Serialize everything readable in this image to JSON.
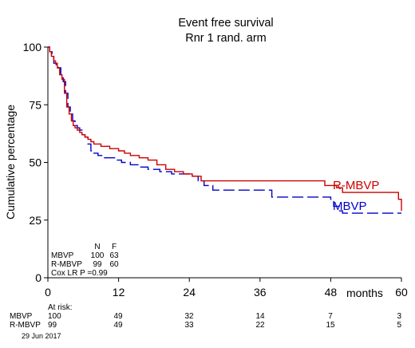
{
  "chart_data": {
    "type": "line",
    "step": true,
    "title": "Event free survival",
    "subtitle": "Rnr 1 rand. arm",
    "ylabel": "Cumulative percentage",
    "xlabel_unit": "months",
    "xlim": [
      0,
      60
    ],
    "ylim": [
      0,
      100
    ],
    "xticks": [
      "0",
      "12",
      "24",
      "36",
      "48",
      "60"
    ],
    "yticks": [
      "0",
      "25",
      "50",
      "75",
      "100"
    ],
    "grid": false,
    "series": [
      {
        "name": "R-MBVP",
        "color": "#cc0000",
        "dash": "solid",
        "x": [
          0,
          0.3,
          0.6,
          1.0,
          1.3,
          1.6,
          2.0,
          2.4,
          2.8,
          3.2,
          3.6,
          4.0,
          4.3,
          4.6,
          5.0,
          5.4,
          5.8,
          6.3,
          6.8,
          7.3,
          7.8,
          8.3,
          9.0,
          9.8,
          10.5,
          11.2,
          12.0,
          13.0,
          14.0,
          15.5,
          17.0,
          18.5,
          20.0,
          21.5,
          23.0,
          24.5,
          26.0,
          46.0,
          47.0,
          49.0,
          50.0,
          57.0,
          59.5,
          60
        ],
        "y": [
          100,
          98,
          96,
          94,
          93,
          91,
          88,
          86,
          80,
          74,
          71,
          68,
          66,
          65,
          64,
          63,
          62,
          61,
          60,
          59,
          58,
          58,
          57,
          57,
          56,
          56,
          55,
          54,
          53,
          52,
          51,
          49,
          47,
          46,
          45,
          44,
          42,
          42,
          40,
          39,
          37,
          37,
          34,
          29
        ]
      },
      {
        "name": "MBVP",
        "color": "#0000cc",
        "dash": "dashed",
        "x": [
          0,
          0.3,
          0.7,
          1.0,
          1.4,
          1.8,
          2.2,
          2.6,
          3.0,
          3.4,
          3.8,
          4.2,
          4.6,
          5.0,
          5.4,
          5.8,
          6.3,
          6.8,
          7.3,
          7.8,
          8.5,
          9.5,
          10.5,
          11.5,
          12.5,
          14.0,
          15.5,
          17.0,
          19.0,
          21.0,
          23.0,
          24.5,
          25.5,
          26.5,
          28.0,
          37.0,
          38.0,
          46.0,
          48.0,
          48.5,
          49.5,
          50.0,
          60
        ],
        "y": [
          100,
          98,
          96,
          93,
          92,
          91,
          88,
          85,
          80,
          74,
          71,
          68,
          66,
          65,
          64,
          62,
          61,
          58,
          55,
          54,
          53,
          52,
          52,
          51,
          50,
          49,
          48,
          47,
          46,
          45,
          45,
          44,
          42,
          40,
          38,
          38,
          35,
          35,
          34,
          31,
          29,
          28,
          28
        ]
      }
    ],
    "legend_table": {
      "headers": [
        "",
        "N",
        "F"
      ],
      "rows": [
        [
          "MBVP",
          "100",
          "63"
        ],
        [
          "R-MBVP",
          "99",
          "60"
        ]
      ],
      "test": "Cox LR P =0.99"
    },
    "at_risk": {
      "label": "At risk:",
      "rows": [
        {
          "name": "MBVP",
          "values": [
            "100",
            "49",
            "32",
            "14",
            "7",
            "3"
          ]
        },
        {
          "name": "R-MBVP",
          "values": [
            "99",
            "49",
            "33",
            "22",
            "15",
            "5"
          ]
        }
      ]
    },
    "date": "29 Jun 2017"
  }
}
